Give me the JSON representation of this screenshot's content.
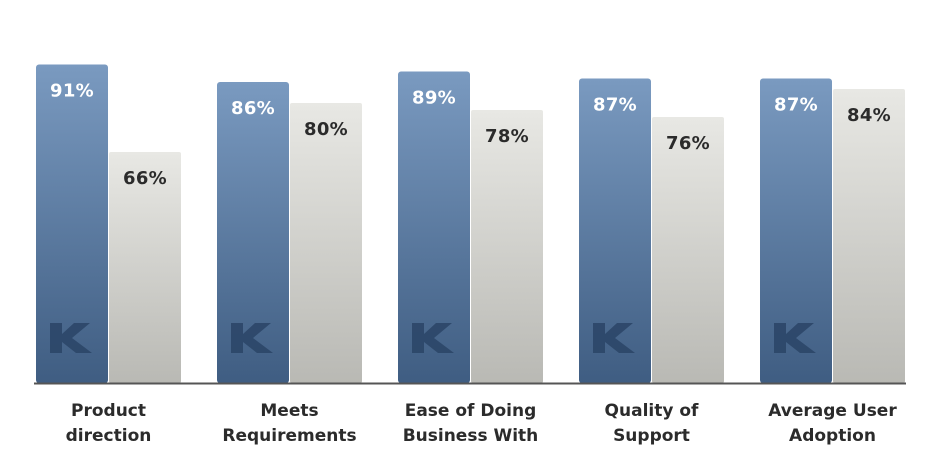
{
  "chart_data": {
    "type": "bar",
    "categories": [
      [
        "Product",
        "direction"
      ],
      [
        "Meets",
        "Requirements"
      ],
      [
        "Ease of Doing",
        "Business With"
      ],
      [
        "Quality of",
        "Support"
      ],
      [
        "Average User",
        "Adoption"
      ]
    ],
    "series": [
      {
        "values": [
          91,
          86,
          89,
          87,
          87
        ],
        "labels": [
          "91%",
          "86%",
          "89%",
          "87%",
          "87%"
        ],
        "color_top": "#7a9ac0",
        "color_bottom": "#3f5d82",
        "label_color": "#ffffff",
        "watermark": "K"
      },
      {
        "values": [
          66,
          80,
          78,
          76,
          84
        ],
        "labels": [
          "66%",
          "80%",
          "78%",
          "76%",
          "84%"
        ],
        "color_top": "#e8e8e4",
        "color_bottom": "#b9b9b4",
        "label_color": "#2b2b2b"
      }
    ],
    "ylim": [
      0,
      100
    ],
    "grid": false,
    "legend": "none",
    "baseline_color": "#555555"
  }
}
